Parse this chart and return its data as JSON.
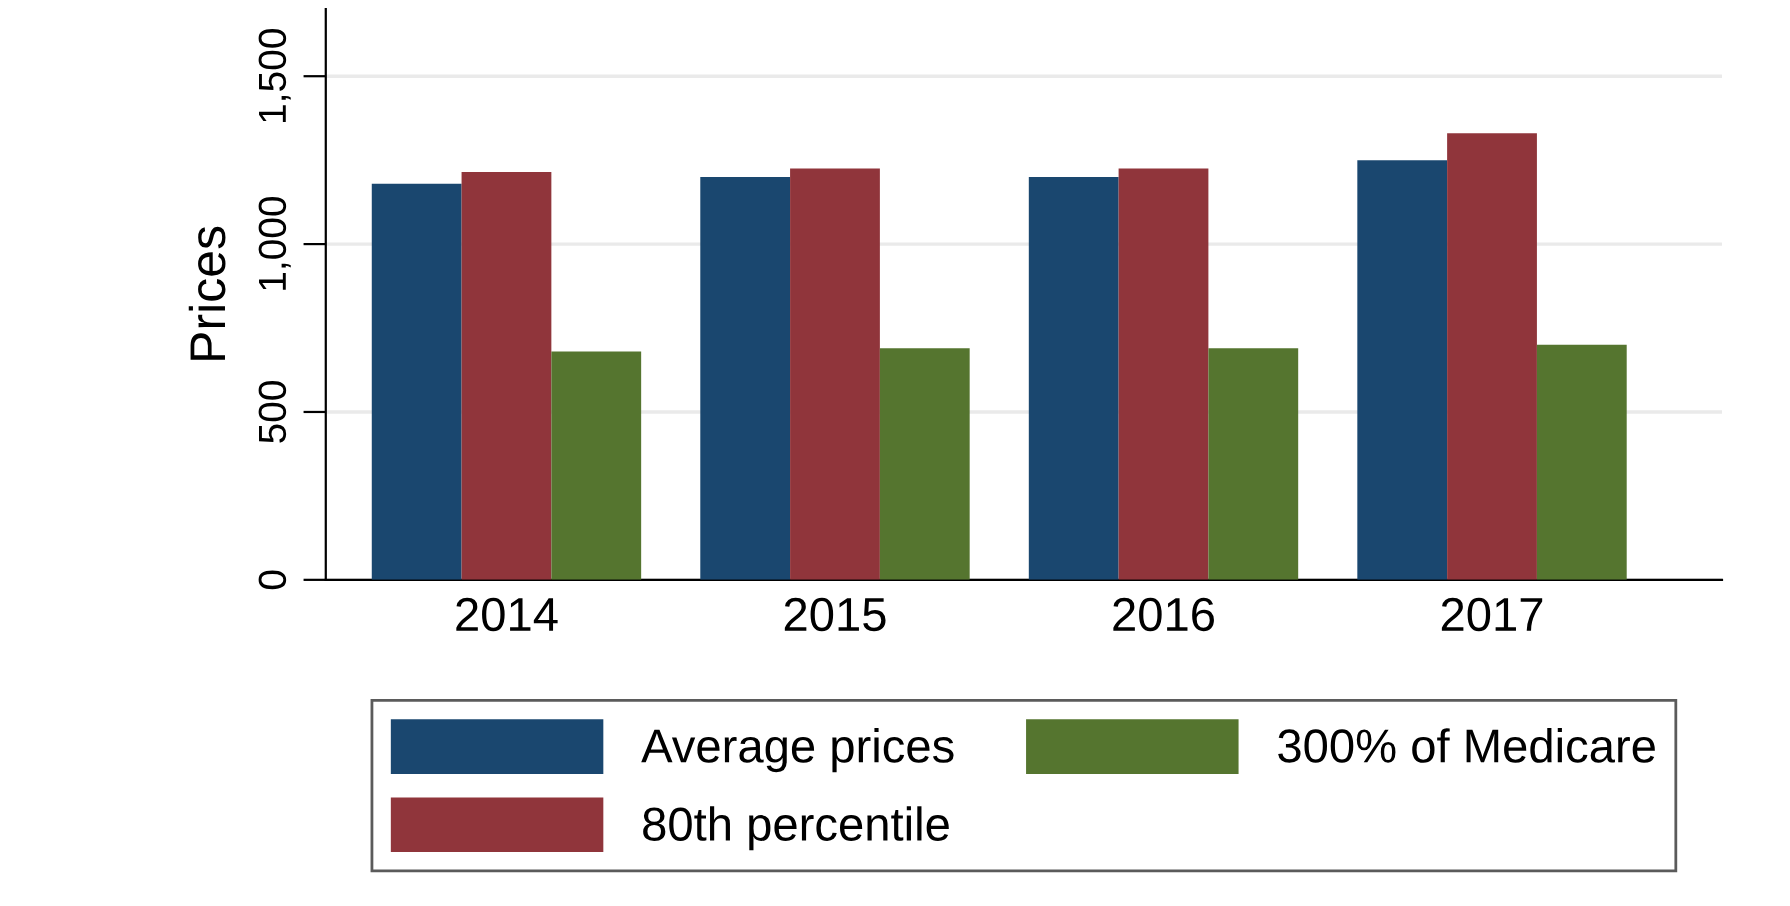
{
  "chart_data": {
    "type": "bar",
    "ylabel": "Prices",
    "categories": [
      "2014",
      "2015",
      "2016",
      "2017"
    ],
    "series": [
      {
        "name": "Average prices",
        "color": "#1a476f",
        "values": [
          1180,
          1200,
          1200,
          1250
        ]
      },
      {
        "name": "80th percentile",
        "color": "#90353b",
        "values": [
          1215,
          1225,
          1225,
          1330
        ]
      },
      {
        "name": "300% of Medicare",
        "color": "#55752f",
        "values": [
          680,
          690,
          690,
          700
        ]
      }
    ],
    "ylim": [
      0,
      1700
    ],
    "yticks": [
      0,
      {
        "value": 500,
        "label": "500"
      },
      {
        "value": 1000,
        "label": "1,000"
      },
      {
        "value": 1500,
        "label": "1,500"
      }
    ],
    "grid": "y",
    "legend": "bottom"
  }
}
